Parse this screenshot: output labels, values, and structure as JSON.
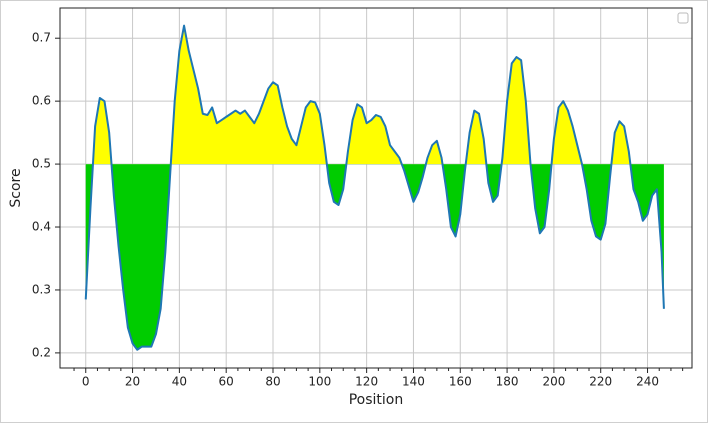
{
  "chart_data": {
    "type": "threshold-line",
    "x_label": "Position",
    "y_label": "Score",
    "x": [
      0,
      2,
      4,
      6,
      8,
      10,
      12,
      14,
      16,
      18,
      20,
      22,
      24,
      26,
      28,
      30,
      32,
      34,
      36,
      38,
      40,
      42,
      44,
      46,
      48,
      50,
      52,
      54,
      56,
      58,
      60,
      62,
      64,
      66,
      68,
      70,
      72,
      74,
      76,
      78,
      80,
      82,
      84,
      86,
      88,
      90,
      92,
      94,
      96,
      98,
      100,
      102,
      104,
      106,
      108,
      110,
      112,
      114,
      116,
      118,
      120,
      122,
      124,
      126,
      128,
      130,
      132,
      134,
      136,
      138,
      140,
      142,
      144,
      146,
      148,
      150,
      152,
      154,
      156,
      158,
      160,
      162,
      164,
      166,
      168,
      170,
      172,
      174,
      176,
      178,
      180,
      182,
      184,
      186,
      188,
      190,
      192,
      194,
      196,
      198,
      200,
      202,
      204,
      206,
      208,
      210,
      212,
      214,
      216,
      218,
      220,
      222,
      224,
      226,
      228,
      230,
      232,
      234,
      236,
      238,
      240,
      242,
      244,
      246,
      247
    ],
    "values": [
      0.285,
      0.43,
      0.56,
      0.605,
      0.6,
      0.55,
      0.45,
      0.37,
      0.3,
      0.24,
      0.215,
      0.205,
      0.21,
      0.21,
      0.21,
      0.23,
      0.27,
      0.36,
      0.48,
      0.6,
      0.68,
      0.72,
      0.68,
      0.65,
      0.62,
      0.58,
      0.578,
      0.59,
      0.565,
      0.57,
      0.575,
      0.58,
      0.585,
      0.58,
      0.585,
      0.575,
      0.565,
      0.58,
      0.6,
      0.62,
      0.63,
      0.625,
      0.59,
      0.56,
      0.54,
      0.53,
      0.56,
      0.59,
      0.6,
      0.598,
      0.58,
      0.53,
      0.47,
      0.44,
      0.435,
      0.46,
      0.52,
      0.57,
      0.595,
      0.59,
      0.565,
      0.57,
      0.578,
      0.575,
      0.56,
      0.53,
      0.52,
      0.51,
      0.49,
      0.465,
      0.44,
      0.455,
      0.48,
      0.51,
      0.53,
      0.537,
      0.51,
      0.46,
      0.4,
      0.385,
      0.42,
      0.49,
      0.55,
      0.585,
      0.58,
      0.54,
      0.47,
      0.44,
      0.45,
      0.51,
      0.6,
      0.66,
      0.67,
      0.665,
      0.6,
      0.5,
      0.43,
      0.39,
      0.4,
      0.46,
      0.54,
      0.59,
      0.6,
      0.585,
      0.56,
      0.53,
      0.5,
      0.46,
      0.41,
      0.385,
      0.38,
      0.405,
      0.48,
      0.55,
      0.568,
      0.56,
      0.52,
      0.46,
      0.44,
      0.41,
      0.42,
      0.45,
      0.46,
      0.36,
      0.27
    ],
    "line_color": "#1f77b4",
    "threshold": 0.5,
    "above_color": "#ffff00",
    "below_color": "#00cc00",
    "xlim": [
      -11,
      259
    ],
    "ylim": [
      0.176,
      0.748
    ],
    "xticks": [
      0,
      20,
      40,
      60,
      80,
      100,
      120,
      140,
      160,
      180,
      200,
      220,
      240
    ],
    "xminorticks": [
      -5,
      5,
      10,
      15,
      25,
      30,
      35,
      45,
      50,
      55,
      65,
      70,
      75,
      85,
      90,
      95,
      105,
      110,
      115,
      125,
      130,
      135,
      145,
      150,
      155,
      165,
      170,
      175,
      185,
      190,
      195,
      205,
      210,
      215,
      225,
      230,
      235,
      245,
      250,
      255
    ],
    "yticks": [
      0.2,
      0.3,
      0.4,
      0.5,
      0.6,
      0.7
    ],
    "grid": true
  }
}
